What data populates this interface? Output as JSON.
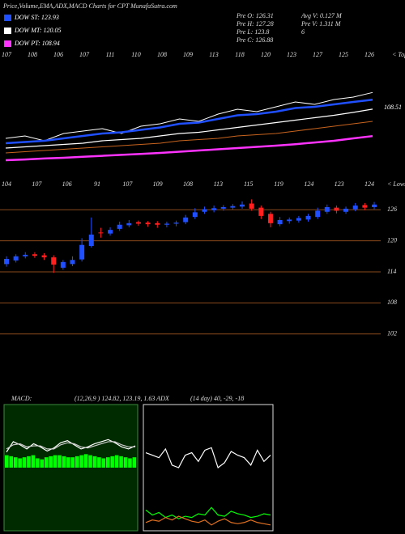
{
  "header": {
    "title": "Price,Volume,EMA,ADX,MACD Charts for CPT MunafaSutra.com",
    "info": [
      "Pre O: 126.31",
      "Avg V: 0.127 M",
      "Pre H: 127.28",
      "Pre V: 1.311 M",
      "Pre L: 123.8",
      "6",
      "Pre C: 126.88"
    ]
  },
  "chart_data": [
    {
      "type": "line",
      "top_labels": [
        107,
        108,
        106,
        107,
        111,
        110,
        108,
        109,
        113,
        118,
        120,
        123,
        127,
        125,
        126
      ],
      "top_note": "< Tops",
      "annotation": "108.51",
      "ylim": [
        95,
        142
      ],
      "series": [
        {
          "color": "#ffffff",
          "values": [
            108,
            109,
            107,
            110,
            111,
            112,
            110,
            113,
            114,
            116,
            115,
            118,
            120,
            119,
            121,
            123,
            122,
            124,
            125,
            126.9
          ]
        },
        {
          "name": "DOW ST: 123.93",
          "color": "#1f4fff",
          "values": [
            106,
            106.5,
            107,
            108,
            109,
            110,
            110.5,
            111.5,
            112.5,
            114,
            114.5,
            116,
            117.5,
            118,
            119,
            120.5,
            121,
            122,
            123,
            123.9
          ]
        },
        {
          "name": "DOW MT: 120.05",
          "color": "#ffffff",
          "values": [
            104,
            104.5,
            105,
            105.5,
            106,
            107,
            107.5,
            108,
            109,
            110,
            110.5,
            111.5,
            112.5,
            113.5,
            114.5,
            115.5,
            116.5,
            117.5,
            118.7,
            120.05
          ]
        },
        {
          "color": "#c8641e",
          "values": [
            102,
            102.5,
            103,
            103.5,
            104,
            104.5,
            105,
            105.5,
            106,
            107,
            107.5,
            108,
            109,
            109.5,
            110,
            111,
            112,
            113,
            114,
            115
          ]
        },
        {
          "name": "DOW PT: 108.94",
          "color": "#ff33ff",
          "values": [
            99,
            99.3,
            99.7,
            100,
            100.4,
            100.8,
            101.2,
            101.6,
            102,
            102.5,
            103,
            103.5,
            104,
            104.5,
            105,
            105.6,
            106.3,
            107,
            108,
            108.94
          ]
        }
      ]
    },
    {
      "type": "candlestick",
      "low_labels": [
        104,
        107,
        106,
        91,
        107,
        109,
        108,
        113,
        115,
        119,
        124,
        123,
        124
      ],
      "low_note": "< Lows",
      "ylim": [
        99,
        129
      ],
      "yticks": [
        126,
        120,
        114,
        108,
        102
      ],
      "grid": true,
      "up_color": "#1f4fff",
      "down_color": "#ff2020",
      "open": [
        115.5,
        116.2,
        117,
        117.4,
        117.2,
        116.8,
        114.8,
        115.5,
        116.4,
        119,
        121.6,
        121.4,
        122.3,
        123,
        123.6,
        123.5,
        123.4,
        123.1,
        123.3,
        123.6,
        124.6,
        125.6,
        125.9,
        126.2,
        126.4,
        126.6,
        127.2,
        126.4,
        125.2,
        123.2,
        123.8,
        123.9,
        124.1,
        124.6,
        125.6,
        126.4,
        125.6,
        126.1,
        126.9,
        126.5
      ],
      "high": [
        117,
        117.4,
        117.8,
        117.8,
        117.6,
        117.2,
        116.3,
        117,
        120.5,
        124.5,
        122.5,
        122.6,
        123.7,
        124,
        123.9,
        123.8,
        123.8,
        123.7,
        123.9,
        125,
        126.3,
        126.6,
        126.8,
        126.9,
        127.1,
        127.6,
        128,
        126.8,
        125.6,
        124.6,
        124.5,
        124.8,
        125.2,
        126.4,
        127,
        126.8,
        126.6,
        127.3,
        127.3,
        127.5
      ],
      "low": [
        115,
        115.8,
        116.6,
        116.7,
        116.3,
        113.8,
        114.4,
        115.1,
        116,
        118.7,
        120.6,
        121,
        121.9,
        122.6,
        122.9,
        122.7,
        122.5,
        122.6,
        122.8,
        123.2,
        124.2,
        125.2,
        125.5,
        125.8,
        126,
        126.2,
        125.8,
        124.2,
        122.6,
        122.8,
        123.3,
        123.5,
        123.7,
        124.2,
        125.2,
        125.3,
        125.2,
        125.7,
        125.9,
        126.1
      ],
      "close": [
        116.5,
        117,
        117.3,
        117.1,
        116.8,
        115.4,
        115.9,
        116.3,
        119.2,
        121.2,
        121.5,
        122.1,
        123.1,
        123.4,
        123.3,
        123.2,
        123.1,
        123.3,
        123.5,
        124.5,
        125.5,
        126.1,
        126.3,
        126.5,
        126.7,
        127,
        126.2,
        124.8,
        123.4,
        124,
        124.1,
        124.4,
        124.8,
        125.8,
        126.5,
        125.8,
        126.2,
        126.8,
        126.4,
        127
      ]
    },
    {
      "type": "macd",
      "title": "MACD:",
      "subtitle": "(12,26,9 ) 124.82, 123.19, 1.63 ADX",
      "ylim": [
        -6,
        6
      ],
      "histogram": {
        "color": "#00ff00",
        "values": [
          1.2,
          1.1,
          1.0,
          0.9,
          1.0,
          1.1,
          1.2,
          0.9,
          0.8,
          1.0,
          1.1,
          1.2,
          1.2,
          1.1,
          1.0,
          1.0,
          1.1,
          1.2,
          1.3,
          1.2,
          1.1,
          1.0,
          0.9,
          1.0,
          1.1,
          1.2,
          1.1,
          1.0,
          0.9,
          1.0
        ]
      },
      "series": [
        {
          "color": "#ffffff",
          "values": [
            1.5,
            2.5,
            2.2,
            1.8,
            2.3,
            2.0,
            1.6,
            1.9,
            2.4,
            2.6,
            2.2,
            1.8,
            2.0,
            2.3,
            2.5,
            2.7,
            2.4,
            2.0,
            1.8,
            2.1
          ]
        },
        {
          "color": "#cccccc",
          "values": [
            1.8,
            2.2,
            2.3,
            2.0,
            2.1,
            2.1,
            1.8,
            1.8,
            2.2,
            2.4,
            2.3,
            2.0,
            1.9,
            2.1,
            2.3,
            2.5,
            2.5,
            2.2,
            2.0,
            2.0
          ]
        }
      ]
    },
    {
      "type": "line",
      "title": "(14 day) 40, -29, -18",
      "ylim": [
        0,
        100
      ],
      "series": [
        {
          "color": "#ffffff",
          "values": [
            62,
            60,
            58,
            65,
            52,
            50,
            60,
            62,
            55,
            64,
            66,
            50,
            54,
            63,
            60,
            58,
            52,
            64,
            55,
            60
          ]
        },
        {
          "color": "#00ff00",
          "values": [
            16,
            12,
            14,
            10,
            12,
            9,
            11,
            10,
            13,
            12,
            18,
            12,
            11,
            15,
            13,
            12,
            10,
            11,
            13,
            12
          ]
        },
        {
          "color": "#e07020",
          "values": [
            6,
            8,
            7,
            10,
            8,
            11,
            9,
            7,
            6,
            8,
            4,
            7,
            9,
            6,
            5,
            6,
            8,
            6,
            5,
            4
          ]
        }
      ]
    }
  ]
}
